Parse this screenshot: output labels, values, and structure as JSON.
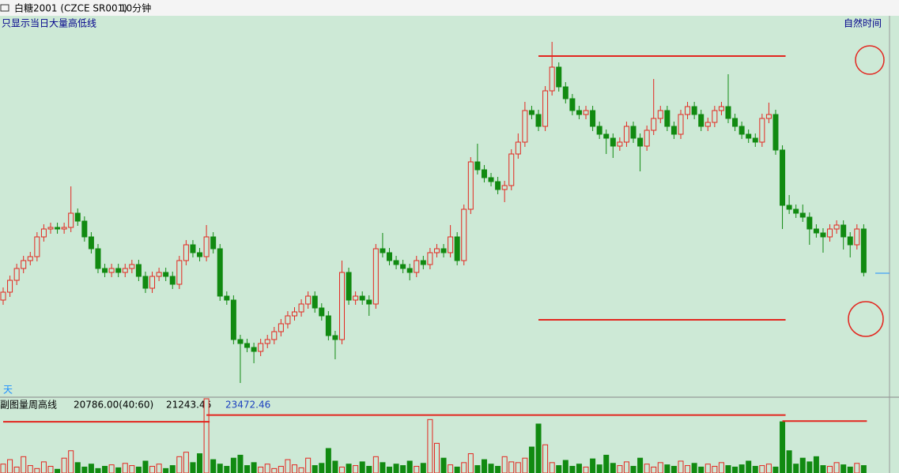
{
  "chart_data": [
    {
      "type": "candlestick",
      "title": "白糖2001 (CZCE SR001)",
      "period": "10分钟",
      "option": "只显示当日大量高低线",
      "time_mode": "自然时间",
      "tab": "天",
      "up_color": "#e3261f",
      "down_color": "#118a11",
      "ylim": [
        0,
        480
      ],
      "open": [
        120,
        130,
        145,
        160,
        170,
        175,
        200,
        210,
        212,
        210,
        212,
        230,
        220,
        200,
        185,
        160,
        155,
        160,
        155,
        160,
        165,
        150,
        135,
        150,
        155,
        150,
        140,
        170,
        190,
        180,
        175,
        200,
        185,
        125,
        120,
        70,
        65,
        60,
        55,
        65,
        70,
        80,
        90,
        100,
        105,
        115,
        125,
        110,
        100,
        75,
        70,
        155,
        120,
        125,
        120,
        115,
        185,
        180,
        170,
        165,
        160,
        155,
        170,
        165,
        180,
        185,
        180,
        200,
        170,
        235,
        295,
        285,
        275,
        270,
        260,
        265,
        305,
        320,
        360,
        355,
        340,
        385,
        415,
        390,
        375,
        360,
        355,
        360,
        340,
        330,
        325,
        315,
        320,
        340,
        325,
        315,
        335,
        350,
        360,
        340,
        330,
        355,
        365,
        355,
        340,
        345,
        360,
        365,
        350,
        340,
        330,
        325,
        320,
        350,
        355,
        310,
        240,
        235,
        230,
        225,
        210,
        205,
        200,
        210,
        215,
        200,
        190,
        210
      ],
      "high": [
        136,
        151,
        166,
        176,
        181,
        206,
        216,
        218,
        218,
        218,
        264,
        236,
        226,
        206,
        191,
        166,
        166,
        166,
        166,
        171,
        171,
        156,
        156,
        161,
        161,
        156,
        176,
        196,
        196,
        186,
        215,
        206,
        191,
        131,
        126,
        76,
        71,
        66,
        71,
        76,
        86,
        96,
        106,
        111,
        121,
        131,
        131,
        116,
        106,
        81,
        170,
        161,
        131,
        131,
        126,
        191,
        205,
        186,
        176,
        171,
        166,
        176,
        176,
        186,
        191,
        191,
        215,
        206,
        241,
        301,
        318,
        291,
        281,
        276,
        271,
        311,
        331,
        371,
        366,
        361,
        391,
        447,
        421,
        396,
        381,
        366,
        366,
        366,
        346,
        336,
        331,
        326,
        346,
        346,
        331,
        341,
        400,
        366,
        366,
        346,
        361,
        371,
        371,
        361,
        351,
        366,
        371,
        406,
        356,
        346,
        336,
        331,
        356,
        370,
        361,
        316,
        253,
        241,
        241,
        231,
        216,
        211,
        216,
        221,
        221,
        206,
        216,
        216
      ],
      "low": [
        114,
        124,
        139,
        154,
        164,
        169,
        194,
        204,
        204,
        204,
        206,
        214,
        194,
        179,
        154,
        149,
        149,
        149,
        149,
        154,
        144,
        129,
        129,
        144,
        144,
        134,
        134,
        164,
        174,
        169,
        169,
        179,
        119,
        114,
        64,
        15,
        54,
        40,
        49,
        59,
        64,
        74,
        84,
        94,
        99,
        109,
        104,
        94,
        69,
        45,
        64,
        114,
        114,
        114,
        100,
        109,
        174,
        164,
        159,
        154,
        145,
        149,
        159,
        159,
        174,
        174,
        174,
        164,
        164,
        229,
        279,
        269,
        264,
        254,
        244,
        259,
        299,
        314,
        349,
        334,
        334,
        379,
        384,
        369,
        354,
        349,
        349,
        334,
        324,
        305,
        300,
        309,
        314,
        319,
        283,
        309,
        329,
        344,
        334,
        324,
        324,
        349,
        349,
        334,
        334,
        339,
        354,
        344,
        334,
        324,
        319,
        314,
        314,
        344,
        304,
        210,
        229,
        224,
        219,
        190,
        199,
        180,
        194,
        204,
        184,
        174,
        184,
        150
      ],
      "close": [
        130,
        145,
        160,
        170,
        175,
        200,
        210,
        212,
        210,
        212,
        230,
        220,
        200,
        185,
        160,
        155,
        160,
        155,
        160,
        165,
        150,
        135,
        150,
        155,
        150,
        140,
        170,
        190,
        180,
        175,
        200,
        185,
        125,
        120,
        70,
        65,
        60,
        55,
        65,
        70,
        80,
        90,
        100,
        105,
        115,
        125,
        110,
        100,
        75,
        70,
        155,
        120,
        125,
        120,
        115,
        185,
        180,
        170,
        165,
        160,
        155,
        170,
        165,
        180,
        185,
        180,
        200,
        170,
        235,
        295,
        285,
        275,
        270,
        260,
        265,
        305,
        320,
        360,
        355,
        340,
        385,
        415,
        390,
        375,
        360,
        355,
        360,
        340,
        330,
        325,
        315,
        320,
        340,
        325,
        315,
        335,
        350,
        360,
        340,
        330,
        355,
        365,
        355,
        340,
        345,
        360,
        365,
        350,
        340,
        330,
        325,
        320,
        350,
        355,
        310,
        240,
        235,
        230,
        225,
        210,
        205,
        200,
        210,
        215,
        200,
        190,
        210,
        155
      ],
      "levels": [
        {
          "value": 429,
          "start": 79,
          "end": 115
        },
        {
          "value": 95,
          "start": 79,
          "end": 115
        }
      ]
    },
    {
      "type": "bar",
      "title": "副图量周高线",
      "indicators": [
        "20786.00(40:60)",
        "21243.46",
        "23472.46"
      ],
      "ylim": [
        0,
        100
      ],
      "values": [
        12,
        18,
        8,
        22,
        10,
        6,
        15,
        9,
        5,
        20,
        30,
        14,
        8,
        12,
        6,
        9,
        11,
        7,
        13,
        10,
        8,
        16,
        9,
        12,
        6,
        10,
        22,
        28,
        14,
        26,
        100,
        18,
        12,
        9,
        20,
        24,
        10,
        14,
        8,
        12,
        6,
        9,
        18,
        11,
        7,
        20,
        10,
        13,
        33,
        16,
        8,
        12,
        10,
        15,
        9,
        22,
        14,
        8,
        12,
        10,
        16,
        9,
        13,
        72,
        40,
        20,
        11,
        8,
        14,
        26,
        10,
        18,
        12,
        9,
        22,
        15,
        14,
        20,
        35,
        66,
        38,
        14,
        10,
        17,
        9,
        12,
        8,
        19,
        11,
        24,
        13,
        10,
        15,
        9,
        20,
        12,
        8,
        14,
        11,
        9,
        16,
        10,
        13,
        8,
        12,
        9,
        14,
        10,
        8,
        11,
        16,
        9,
        10,
        12,
        8,
        69,
        30,
        12,
        20,
        15,
        22,
        10,
        9,
        14,
        11,
        8,
        13,
        10
      ],
      "levels": [
        {
          "value": 69,
          "start": 0,
          "end": 30
        },
        {
          "value": 78,
          "start": 30,
          "end": 115
        },
        {
          "value": 70,
          "start": 115,
          "end": 127
        }
      ]
    }
  ]
}
